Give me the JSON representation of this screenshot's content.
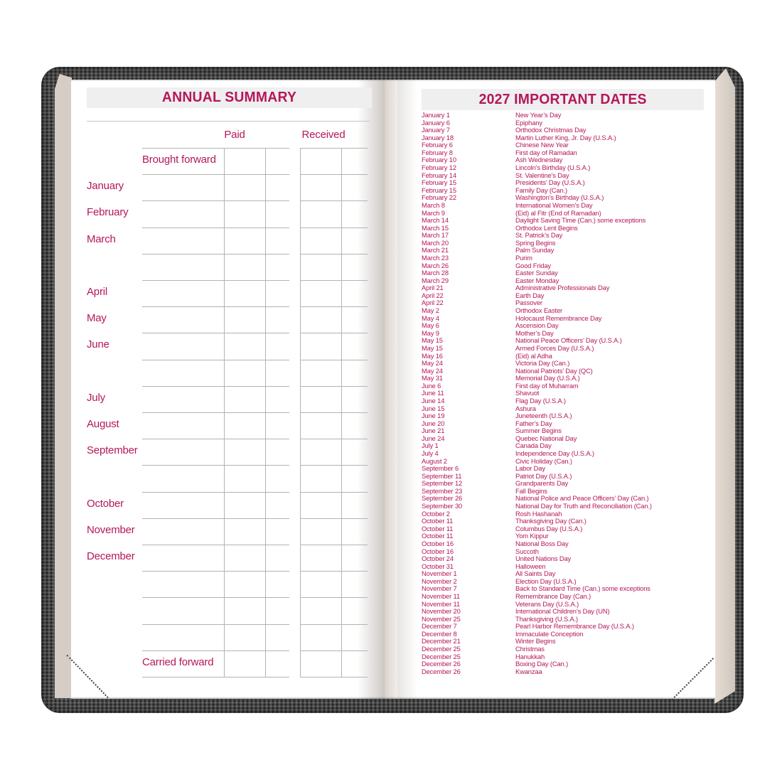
{
  "colors": {
    "accent": "#b5175a",
    "banner_bg": "#efeff0",
    "grid_line": "#b3b3b3",
    "cover_gray": "#4d4d4d",
    "page_edge": "#d6cec6"
  },
  "left_page": {
    "title": "ANNUAL SUMMARY",
    "paid_header": "Paid",
    "received_header": "Received",
    "rows": [
      {
        "label": "Brought forward",
        "inset": true
      },
      {
        "label": "January"
      },
      {
        "label": "February"
      },
      {
        "label": "March"
      },
      {
        "label": ""
      },
      {
        "label": "April"
      },
      {
        "label": "May"
      },
      {
        "label": "June"
      },
      {
        "label": ""
      },
      {
        "label": "July"
      },
      {
        "label": "August"
      },
      {
        "label": "September"
      },
      {
        "label": ""
      },
      {
        "label": "October"
      },
      {
        "label": "November"
      },
      {
        "label": "December"
      },
      {
        "label": ""
      },
      {
        "label": ""
      },
      {
        "label": ""
      },
      {
        "label": "Carried forward",
        "inset": true
      }
    ]
  },
  "right_page": {
    "title": "2027 IMPORTANT DATES",
    "dates": [
      {
        "date": "January 1",
        "event": "New Year’s Day"
      },
      {
        "date": "January 6",
        "event": "Epiphany"
      },
      {
        "date": "January 7",
        "event": "Orthodox Christmas Day"
      },
      {
        "date": "January 18",
        "event": "Martin Luther King, Jr. Day (U.S.A.)"
      },
      {
        "date": "February 6",
        "event": "Chinese New Year"
      },
      {
        "date": "February 8",
        "event": "First day of Ramadan"
      },
      {
        "date": "February 10",
        "event": "Ash Wednesday"
      },
      {
        "date": "February 12",
        "event": "Lincoln’s Birthday (U.S.A.)"
      },
      {
        "date": "February 14",
        "event": "St. Valentine’s Day"
      },
      {
        "date": "February 15",
        "event": "Presidents’ Day (U.S.A.)"
      },
      {
        "date": "February 15",
        "event": "Family Day (Can.)"
      },
      {
        "date": "February 22",
        "event": "Washington’s Birthday (U.S.A.)"
      },
      {
        "date": "March 8",
        "event": "International Women’s Day"
      },
      {
        "date": "March 9",
        "event": "(Eid) al Fitr (End of Ramadan)"
      },
      {
        "date": "March 14",
        "event": "Daylight Saving Time (Can.) some exceptions"
      },
      {
        "date": "March 15",
        "event": "Orthodox Lent Begins"
      },
      {
        "date": "March 17",
        "event": "St. Patrick’s Day"
      },
      {
        "date": "March 20",
        "event": "Spring Begins"
      },
      {
        "date": "March 21",
        "event": "Palm Sunday"
      },
      {
        "date": "March 23",
        "event": "Purim"
      },
      {
        "date": "March 26",
        "event": "Good Friday"
      },
      {
        "date": "March 28",
        "event": "Easter Sunday"
      },
      {
        "date": "March 29",
        "event": "Easter Monday"
      },
      {
        "date": "April 21",
        "event": "Administrative Professionals Day"
      },
      {
        "date": "April 22",
        "event": "Earth Day"
      },
      {
        "date": "April 22",
        "event": "Passover"
      },
      {
        "date": "May 2",
        "event": "Orthodox Easter"
      },
      {
        "date": "May 4",
        "event": "Holocaust Remembrance Day"
      },
      {
        "date": "May 6",
        "event": "Ascension Day"
      },
      {
        "date": "May 9",
        "event": "Mother’s Day"
      },
      {
        "date": "May 15",
        "event": "National Peace Officers’ Day (U.S.A.)"
      },
      {
        "date": "May 15",
        "event": "Armed Forces Day (U.S.A.)"
      },
      {
        "date": "May 16",
        "event": "(Eid) al Adha"
      },
      {
        "date": "May 24",
        "event": "Victoria Day (Can.)"
      },
      {
        "date": "May 24",
        "event": "National Patriots’ Day (QC)"
      },
      {
        "date": "May 31",
        "event": "Memorial Day (U.S.A.)"
      },
      {
        "date": "June 6",
        "event": "First day of Muharram"
      },
      {
        "date": "June 11",
        "event": "Shavuot"
      },
      {
        "date": "June 14",
        "event": "Flag Day (U.S.A.)"
      },
      {
        "date": "June 15",
        "event": "Ashura"
      },
      {
        "date": "June 19",
        "event": "Juneteenth (U.S.A.)"
      },
      {
        "date": "June 20",
        "event": "Father’s Day"
      },
      {
        "date": "June 21",
        "event": "Summer Begins"
      },
      {
        "date": "June 24",
        "event": "Quebec National Day"
      },
      {
        "date": "July 1",
        "event": "Canada Day"
      },
      {
        "date": "July 4",
        "event": "Independence Day (U.S.A.)"
      },
      {
        "date": "August 2",
        "event": "Civic Holiday (Can.)"
      },
      {
        "date": "September 6",
        "event": "Labor Day"
      },
      {
        "date": "September 11",
        "event": "Patriot Day (U.S.A.)"
      },
      {
        "date": "September 12",
        "event": "Grandparents Day"
      },
      {
        "date": "September 23",
        "event": "Fall Begins"
      },
      {
        "date": "September 26",
        "event": "National Police and Peace Officers’ Day (Can.)"
      },
      {
        "date": "September 30",
        "event": "National Day for Truth and Reconciliation (Can.)"
      },
      {
        "date": "October 2",
        "event": "Rosh Hashanah"
      },
      {
        "date": "October 11",
        "event": "Thanksgiving Day (Can.)"
      },
      {
        "date": "October 11",
        "event": "Columbus Day (U.S.A.)"
      },
      {
        "date": "October 11",
        "event": "Yom Kippur"
      },
      {
        "date": "October 16",
        "event": "National Boss Day"
      },
      {
        "date": "October 16",
        "event": "Succoth"
      },
      {
        "date": "October 24",
        "event": "United Nations Day"
      },
      {
        "date": "October 31",
        "event": "Halloween"
      },
      {
        "date": "November 1",
        "event": "All Saints Day"
      },
      {
        "date": "November 2",
        "event": "Election Day (U.S.A.)"
      },
      {
        "date": "November 7",
        "event": "Back to Standard Time (Can.) some exceptions"
      },
      {
        "date": "November 11",
        "event": "Remembrance Day (Can.)"
      },
      {
        "date": "November 11",
        "event": "Veterans Day (U.S.A.)"
      },
      {
        "date": "November 20",
        "event": "International Children’s Day (UN)"
      },
      {
        "date": "November 25",
        "event": "Thanksgiving (U.S.A.)"
      },
      {
        "date": "December 7",
        "event": "Pearl Harbor Remembrance Day (U.S.A.)"
      },
      {
        "date": "December 8",
        "event": "Immaculate Conception"
      },
      {
        "date": "December 21",
        "event": "Winter Begins"
      },
      {
        "date": "December 25",
        "event": "Christmas"
      },
      {
        "date": "December 25",
        "event": "Hanukkah"
      },
      {
        "date": "December 26",
        "event": "Boxing Day (Can.)"
      },
      {
        "date": "December 26",
        "event": "Kwanzaa"
      }
    ]
  }
}
